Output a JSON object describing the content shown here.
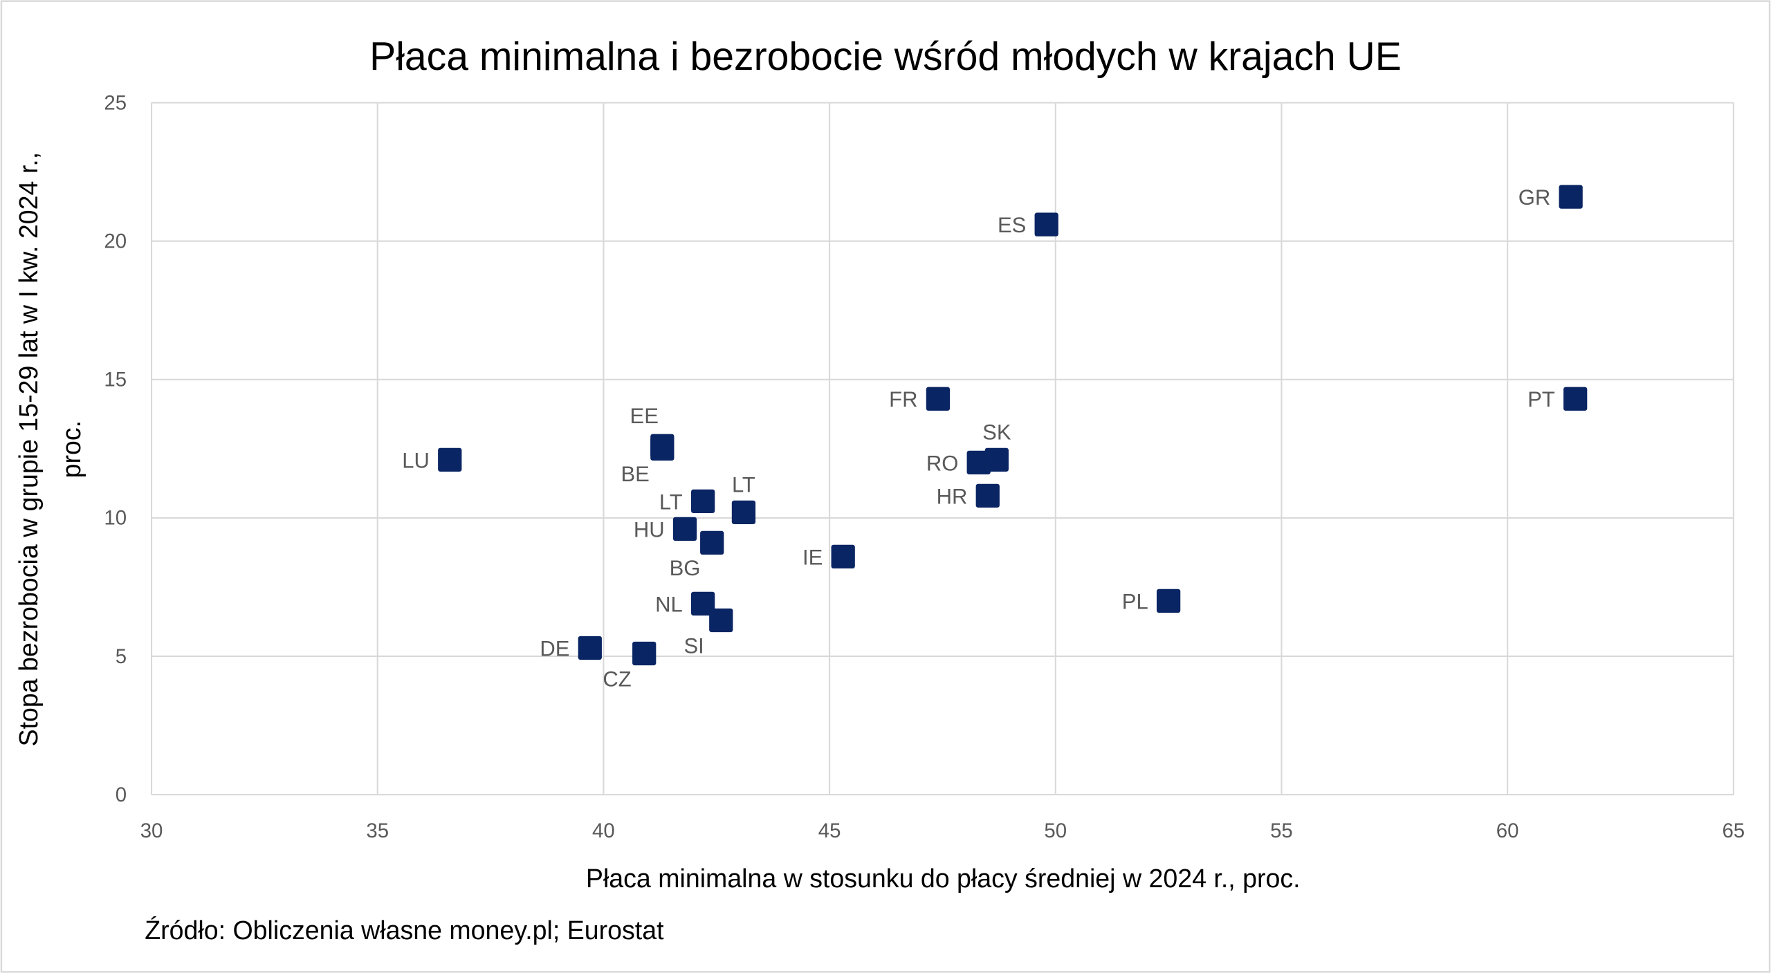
{
  "chart_data": {
    "type": "scatter",
    "title": "Płaca minimalna i bezrobocie wśród młodych w krajach UE",
    "xlabel": "Płaca minimalna w stosunku do płacy średniej w 2024 r., proc.",
    "ylabel_lines": [
      "Stopa bezrobocia w grupie 15-29 lat w I kw. 2024 r.,",
      "proc."
    ],
    "xlim": [
      30,
      65
    ],
    "ylim": [
      0,
      25
    ],
    "xticks": [
      30,
      35,
      40,
      45,
      50,
      55,
      60,
      65
    ],
    "yticks": [
      0,
      5,
      10,
      15,
      20,
      25
    ],
    "grid": true,
    "marker": "square",
    "marker_color": "#0a2563",
    "points": [
      {
        "label": "LU",
        "x": 36.6,
        "y": 12.1,
        "label_position": "left"
      },
      {
        "label": "EE",
        "x": 41.3,
        "y": 12.6,
        "label_position": "above-left"
      },
      {
        "label": "BE",
        "x": 41.3,
        "y": 12.5,
        "label_position": "below-left"
      },
      {
        "label": "LT",
        "x": 42.2,
        "y": 10.6,
        "label_position": "left"
      },
      {
        "label": "LT",
        "x": 43.1,
        "y": 10.2,
        "label_position": "above"
      },
      {
        "label": "HU",
        "x": 41.8,
        "y": 9.6,
        "label_position": "left"
      },
      {
        "label": "BG",
        "x": 42.4,
        "y": 9.1,
        "label_position": "below-left"
      },
      {
        "label": "NL",
        "x": 42.2,
        "y": 6.9,
        "label_position": "left"
      },
      {
        "label": "SI",
        "x": 42.6,
        "y": 6.3,
        "label_position": "below-left"
      },
      {
        "label": "DE",
        "x": 39.7,
        "y": 5.3,
        "label_position": "left"
      },
      {
        "label": "CZ",
        "x": 40.9,
        "y": 5.1,
        "label_position": "below-left"
      },
      {
        "label": "IE",
        "x": 45.3,
        "y": 8.6,
        "label_position": "left"
      },
      {
        "label": "FR",
        "x": 47.4,
        "y": 14.3,
        "label_position": "left"
      },
      {
        "label": "RO",
        "x": 48.3,
        "y": 12.0,
        "label_position": "left"
      },
      {
        "label": "SK",
        "x": 48.7,
        "y": 12.1,
        "label_position": "above"
      },
      {
        "label": "HR",
        "x": 48.5,
        "y": 10.8,
        "label_position": "left"
      },
      {
        "label": "ES",
        "x": 49.8,
        "y": 20.6,
        "label_position": "left"
      },
      {
        "label": "PL",
        "x": 52.5,
        "y": 7.0,
        "label_position": "left"
      },
      {
        "label": "GR",
        "x": 61.4,
        "y": 21.6,
        "label_position": "left"
      },
      {
        "label": "PT",
        "x": 61.5,
        "y": 14.3,
        "label_position": "left"
      }
    ],
    "source": "Źródło: Obliczenia własne money.pl; Eurostat"
  }
}
